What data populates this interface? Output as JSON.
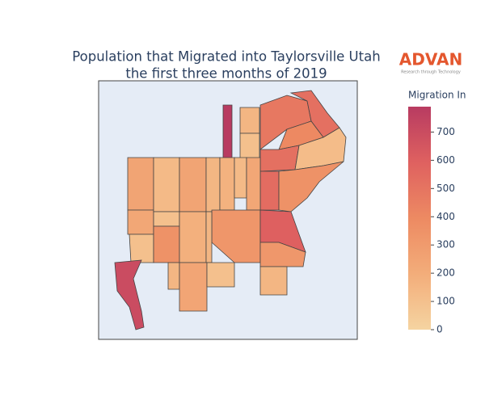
{
  "chart_data": {
    "type": "choropleth",
    "title": [
      "Population that Migrated into Taylorsville Utah",
      "the first three months of 2019"
    ],
    "logo": "ADVAN",
    "logo_tagline": "Research through Technology",
    "colorbar_title": "Migration In",
    "values": [
      790,
      150,
      100,
      480,
      520,
      400,
      520,
      120,
      540,
      350,
      250,
      230,
      100,
      130,
      100,
      350,
      250,
      180,
      150,
      170,
      130,
      230,
      330,
      150,
      600,
      320,
      150,
      150,
      240,
      100,
      700
    ],
    "zlim": [
      0,
      790
    ],
    "zticks": [
      0,
      100,
      200,
      300,
      400,
      500,
      600,
      700
    ],
    "colorscale": [
      [
        0,
        "#f5d4a1"
      ],
      [
        0.25,
        "#f3ad7a"
      ],
      [
        0.5,
        "#ed8a62"
      ],
      [
        0.75,
        "#df6160"
      ],
      [
        1,
        "#b83b61"
      ]
    ]
  }
}
